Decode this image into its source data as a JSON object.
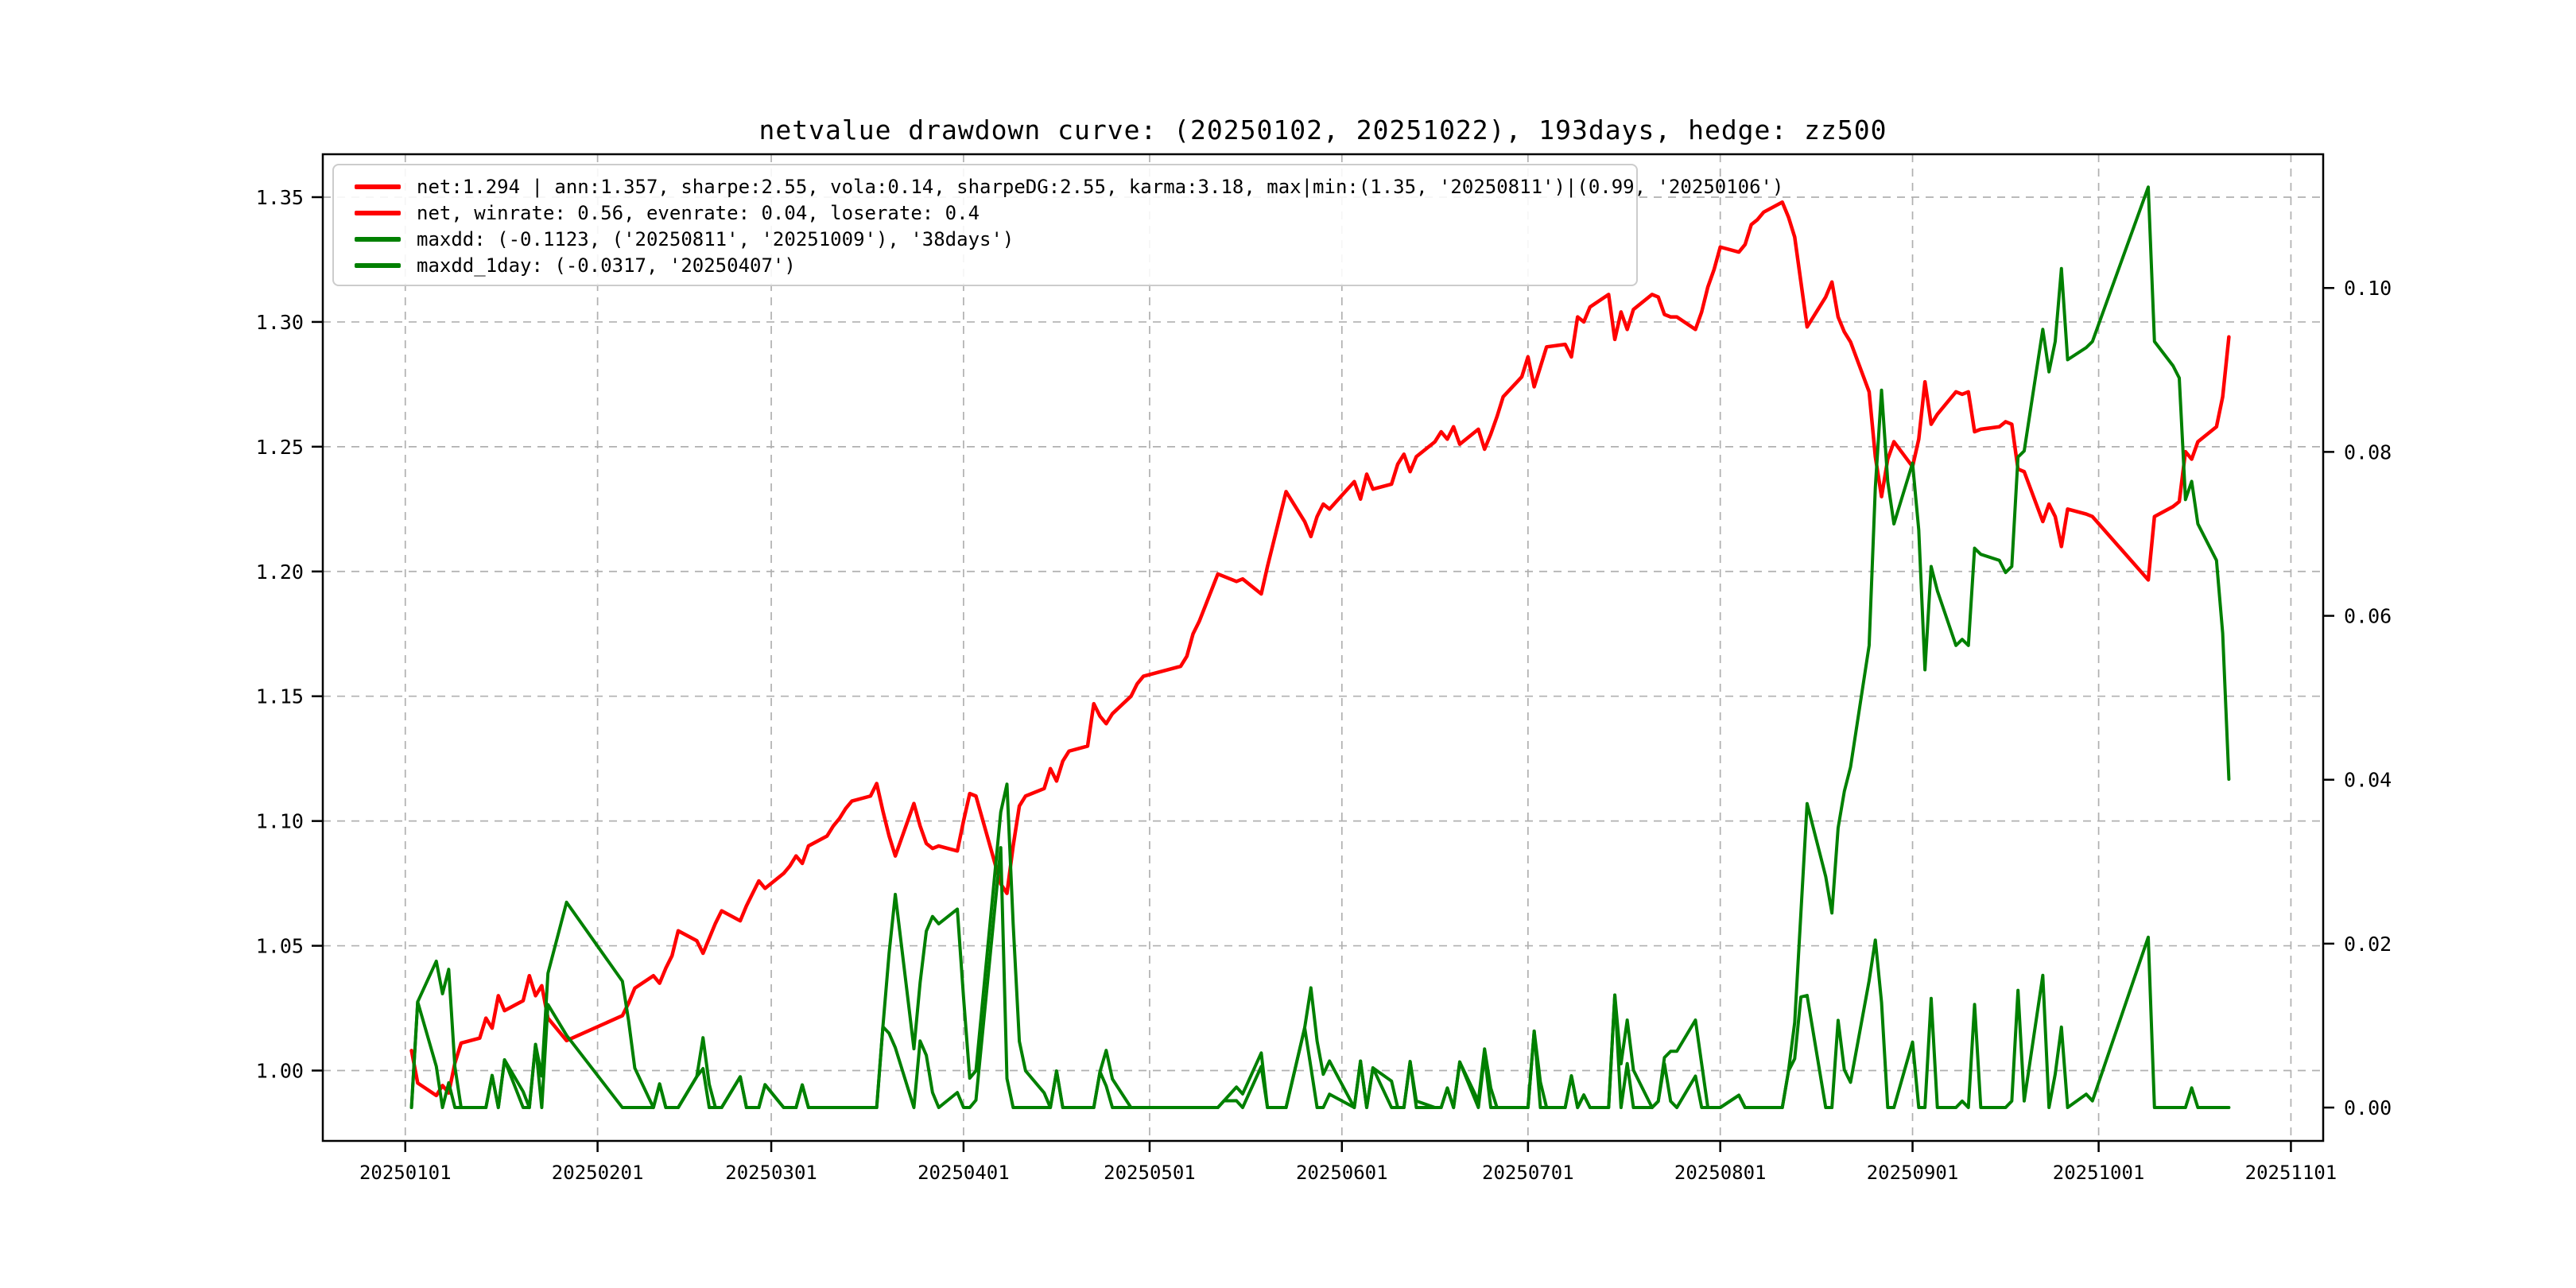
{
  "title": "netvalue drawdown curve: (20250102, 20251022), 193days, hedge: zz500",
  "legend": {
    "entries": [
      {
        "name": "net-stats",
        "color": "#ff0000",
        "label": "net:1.294 | ann:1.357, sharpe:2.55, vola:0.14, sharpeDG:2.55, karma:3.18, max|min:(1.35, '20250811')|(0.99, '20250106')"
      },
      {
        "name": "net-rates",
        "color": "#ff0000",
        "label": "net, winrate: 0.56, evenrate: 0.04, loserate: 0.4"
      },
      {
        "name": "maxdd",
        "color": "#008000",
        "label": "maxdd: (-0.1123, ('20250811', '20251009'), '38days')"
      },
      {
        "name": "maxdd-1day",
        "color": "#008000",
        "label": "maxdd_1day: (-0.0317, '20250407')"
      }
    ]
  },
  "chart_data": {
    "type": "line",
    "title": "netvalue drawdown curve: (20250102, 20251022), 193days, hedge: zz500",
    "grid": true,
    "legend_position": "upper left",
    "colors": {
      "net": "#ff0000",
      "drawdown": "#008000",
      "grid": "#b0b0b0",
      "spine": "#000000"
    },
    "x_ticks": [
      {
        "label": "20250101",
        "date": "20250101"
      },
      {
        "label": "20250201",
        "date": "20250201"
      },
      {
        "label": "20250301",
        "date": "20250301"
      },
      {
        "label": "20250401",
        "date": "20250401"
      },
      {
        "label": "20250501",
        "date": "20250501"
      },
      {
        "label": "20250601",
        "date": "20250601"
      },
      {
        "label": "20250701",
        "date": "20250701"
      },
      {
        "label": "20250801",
        "date": "20250801"
      },
      {
        "label": "20250901",
        "date": "20250901"
      },
      {
        "label": "20251001",
        "date": "20251001"
      },
      {
        "label": "20251101",
        "date": "20251101"
      }
    ],
    "y_left_ticks": [
      {
        "label": "1.00",
        "v": 1.0
      },
      {
        "label": "1.05",
        "v": 1.05
      },
      {
        "label": "1.10",
        "v": 1.1
      },
      {
        "label": "1.15",
        "v": 1.15
      },
      {
        "label": "1.20",
        "v": 1.2
      },
      {
        "label": "1.25",
        "v": 1.25
      },
      {
        "label": "1.30",
        "v": 1.3
      },
      {
        "label": "1.35",
        "v": 1.35
      }
    ],
    "y_right_ticks": [
      {
        "label": "0.00",
        "v": 0.0
      },
      {
        "label": "0.02",
        "v": 0.02
      },
      {
        "label": "0.04",
        "v": 0.04
      },
      {
        "label": "0.06",
        "v": 0.06
      },
      {
        "label": "0.08",
        "v": 0.08
      },
      {
        "label": "0.10",
        "v": 0.1
      }
    ],
    "ylim_left": [
      0.9718,
      1.3672
    ],
    "ylim_right": [
      -0.00407,
      0.11632
    ],
    "x_domain_days_from_20250101": [
      -13.3,
      309.2
    ],
    "stats": {
      "net_final": 1.294,
      "ann": 1.357,
      "sharpe": 2.55,
      "vola": 0.14,
      "sharpeDG": 2.55,
      "karma": 3.18,
      "net_max": {
        "value": 1.35,
        "date": "20250811"
      },
      "net_min": {
        "value": 0.99,
        "date": "20250106"
      },
      "winrate": 0.56,
      "evenrate": 0.04,
      "loserate": 0.4,
      "maxdd": {
        "value": -0.1123,
        "from": "20250811",
        "to": "20251009",
        "duration": "38days"
      },
      "maxdd_1day": {
        "value": -0.0317,
        "date": "20250407"
      },
      "period": {
        "from": "20250102",
        "to": "20251022",
        "trading_days": 193
      },
      "hedge": "zz500"
    },
    "series": [
      {
        "name": "net",
        "axis": "left",
        "color": "#ff0000",
        "dates": [
          "20250102",
          "20250103",
          "20250106",
          "20250107",
          "20250108",
          "20250109",
          "20250110",
          "20250113",
          "20250114",
          "20250115",
          "20250116",
          "20250117",
          "20250120",
          "20250121",
          "20250122",
          "20250123",
          "20250124",
          "20250127",
          "20250205",
          "20250206",
          "20250207",
          "20250210",
          "20250211",
          "20250212",
          "20250213",
          "20250214",
          "20250217",
          "20250218",
          "20250219",
          "20250220",
          "20250221",
          "20250224",
          "20250225",
          "20250226",
          "20250227",
          "20250228",
          "20250303",
          "20250304",
          "20250305",
          "20250306",
          "20250307",
          "20250310",
          "20250311",
          "20250312",
          "20250313",
          "20250314",
          "20250317",
          "20250318",
          "20250319",
          "20250320",
          "20250321",
          "20250324",
          "20250325",
          "20250326",
          "20250327",
          "20250328",
          "20250331",
          "20250401",
          "20250402",
          "20250403",
          "20250407",
          "20250408",
          "20250409",
          "20250410",
          "20250411",
          "20250414",
          "20250415",
          "20250416",
          "20250417",
          "20250418",
          "20250421",
          "20250422",
          "20250423",
          "20250424",
          "20250425",
          "20250428",
          "20250429",
          "20250430",
          "20250506",
          "20250507",
          "20250508",
          "20250509",
          "20250512",
          "20250513",
          "20250514",
          "20250515",
          "20250516",
          "20250519",
          "20250520",
          "20250521",
          "20250522",
          "20250523",
          "20250526",
          "20250527",
          "20250528",
          "20250529",
          "20250530",
          "20250603",
          "20250604",
          "20250605",
          "20250606",
          "20250609",
          "20250610",
          "20250611",
          "20250612",
          "20250613",
          "20250616",
          "20250617",
          "20250618",
          "20250619",
          "20250620",
          "20250623",
          "20250624",
          "20250625",
          "20250626",
          "20250627",
          "20250630",
          "20250701",
          "20250702",
          "20250703",
          "20250704",
          "20250707",
          "20250708",
          "20250709",
          "20250710",
          "20250711",
          "20250714",
          "20250715",
          "20250716",
          "20250717",
          "20250718",
          "20250721",
          "20250722",
          "20250723",
          "20250724",
          "20250725",
          "20250728",
          "20250729",
          "20250730",
          "20250731",
          "20250801",
          "20250804",
          "20250805",
          "20250806",
          "20250807",
          "20250808",
          "20250811",
          "20250812",
          "20250813",
          "20250814",
          "20250815",
          "20250818",
          "20250819",
          "20250820",
          "20250821",
          "20250822",
          "20250825",
          "20250826",
          "20250827",
          "20250828",
          "20250829",
          "20250901",
          "20250902",
          "20250903",
          "20250904",
          "20250905",
          "20250908",
          "20250909",
          "20250910",
          "20250911",
          "20250912",
          "20250915",
          "20250916",
          "20250917",
          "20250918",
          "20250919",
          "20250922",
          "20250923",
          "20250924",
          "20250925",
          "20250926",
          "20250929",
          "20250930",
          "20251009",
          "20251010",
          "20251013",
          "20251014",
          "20251015",
          "20251016",
          "20251017",
          "20251020",
          "20251021",
          "20251022"
        ],
        "values": [
          1.008,
          0.995,
          0.99,
          0.994,
          0.991,
          1.003,
          1.011,
          1.013,
          1.021,
          1.017,
          1.03,
          1.024,
          1.028,
          1.038,
          1.03,
          1.034,
          1.021,
          1.012,
          1.022,
          1.027,
          1.033,
          1.038,
          1.035,
          1.041,
          1.046,
          1.056,
          1.052,
          1.047,
          1.053,
          1.059,
          1.064,
          1.06,
          1.066,
          1.071,
          1.076,
          1.073,
          1.079,
          1.082,
          1.086,
          1.083,
          1.09,
          1.094,
          1.098,
          1.101,
          1.105,
          1.108,
          1.11,
          1.115,
          1.104,
          1.094,
          1.086,
          1.107,
          1.098,
          1.091,
          1.089,
          1.09,
          1.088,
          1.1,
          1.111,
          1.11,
          1.0748,
          1.071,
          1.09,
          1.106,
          1.11,
          1.113,
          1.121,
          1.116,
          1.124,
          1.128,
          1.13,
          1.147,
          1.142,
          1.139,
          1.143,
          1.15,
          1.155,
          1.158,
          1.162,
          1.166,
          1.175,
          1.18,
          1.199,
          1.198,
          1.197,
          1.196,
          1.197,
          1.191,
          1.202,
          1.212,
          1.222,
          1.232,
          1.22,
          1.214,
          1.222,
          1.227,
          1.225,
          1.236,
          1.229,
          1.239,
          1.233,
          1.235,
          1.243,
          1.247,
          1.24,
          1.246,
          1.252,
          1.256,
          1.253,
          1.258,
          1.251,
          1.257,
          1.249,
          1.255,
          1.262,
          1.27,
          1.278,
          1.286,
          1.274,
          1.282,
          1.29,
          1.291,
          1.286,
          1.302,
          1.3,
          1.306,
          1.311,
          1.293,
          1.304,
          1.297,
          1.305,
          1.311,
          1.31,
          1.303,
          1.302,
          1.302,
          1.297,
          1.304,
          1.314,
          1.321,
          1.33,
          1.328,
          1.331,
          1.339,
          1.341,
          1.344,
          1.348,
          1.342,
          1.334,
          1.316,
          1.298,
          1.31,
          1.316,
          1.302,
          1.296,
          1.292,
          1.272,
          1.246,
          1.23,
          1.245,
          1.252,
          1.242,
          1.253,
          1.276,
          1.259,
          1.263,
          1.272,
          1.271,
          1.272,
          1.256,
          1.257,
          1.258,
          1.26,
          1.259,
          1.241,
          1.24,
          1.22,
          1.227,
          1.222,
          1.21,
          1.225,
          1.223,
          1.222,
          1.1966,
          1.222,
          1.226,
          1.228,
          1.248,
          1.245,
          1.252,
          1.258,
          1.27,
          1.294
        ]
      },
      {
        "name": "maxdd",
        "axis": "right",
        "color": "#008000",
        "derived": "running_drawdown_of_net"
      },
      {
        "name": "maxdd_1day",
        "axis": "right",
        "color": "#008000",
        "derived": "one_day_drawdown_of_net"
      }
    ]
  }
}
